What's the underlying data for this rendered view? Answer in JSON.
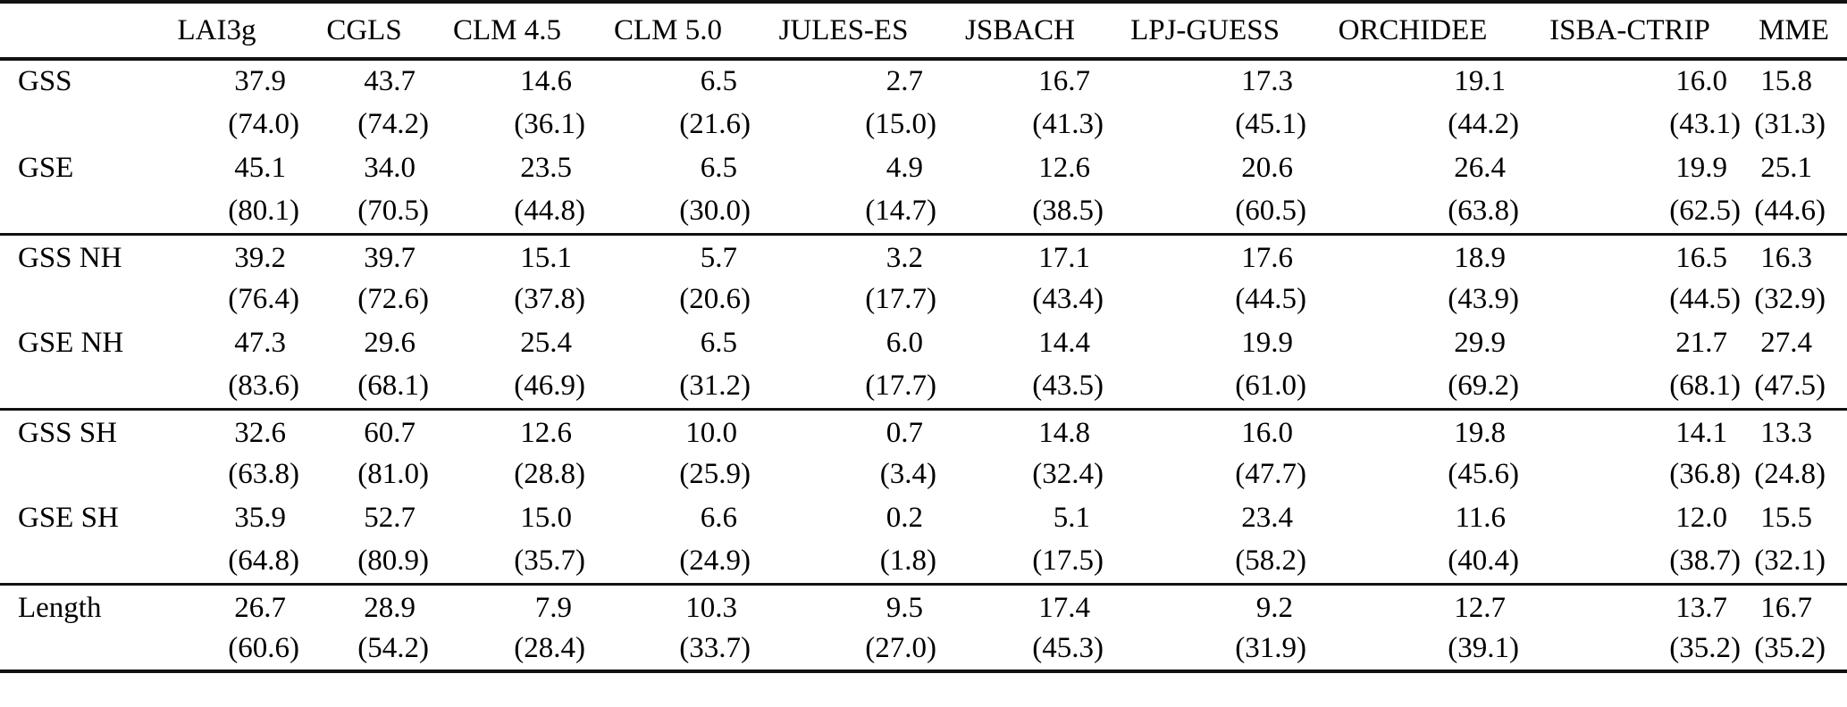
{
  "table": {
    "columns": [
      "",
      "LAI3g",
      "CGLS",
      "CLM 4.5",
      "CLM 5.0",
      "JULES-ES",
      "JSBACH",
      "LPJ-GUESS",
      "ORCHIDEE",
      "ISBA-CTRIP",
      "MME"
    ],
    "sections": [
      {
        "rows": [
          {
            "label": "GSS",
            "values": [
              "37.9",
              "43.7",
              "14.6",
              "6.5",
              "2.7",
              "16.7",
              "17.3",
              "19.1",
              "16.0",
              "15.8"
            ],
            "parens": [
              "(74.0)",
              "(74.2)",
              "(36.1)",
              "(21.6)",
              "(15.0)",
              "(41.3)",
              "(45.1)",
              "(44.2)",
              "(43.1)",
              "(31.3)"
            ]
          },
          {
            "label": "GSE",
            "values": [
              "45.1",
              "34.0",
              "23.5",
              "6.5",
              "4.9",
              "12.6",
              "20.6",
              "26.4",
              "19.9",
              "25.1"
            ],
            "parens": [
              "(80.1)",
              "(70.5)",
              "(44.8)",
              "(30.0)",
              "(14.7)",
              "(38.5)",
              "(60.5)",
              "(63.8)",
              "(62.5)",
              "(44.6)"
            ]
          }
        ]
      },
      {
        "rows": [
          {
            "label": "GSS NH",
            "values": [
              "39.2",
              "39.7",
              "15.1",
              "5.7",
              "3.2",
              "17.1",
              "17.6",
              "18.9",
              "16.5",
              "16.3"
            ],
            "parens": [
              "(76.4)",
              "(72.6)",
              "(37.8)",
              "(20.6)",
              "(17.7)",
              "(43.4)",
              "(44.5)",
              "(43.9)",
              "(44.5)",
              "(32.9)"
            ]
          },
          {
            "label": "GSE NH",
            "values": [
              "47.3",
              "29.6",
              "25.4",
              "6.5",
              "6.0",
              "14.4",
              "19.9",
              "29.9",
              "21.7",
              "27.4"
            ],
            "parens": [
              "(83.6)",
              "(68.1)",
              "(46.9)",
              "(31.2)",
              "(17.7)",
              "(43.5)",
              "(61.0)",
              "(69.2)",
              "(68.1)",
              "(47.5)"
            ]
          }
        ]
      },
      {
        "rows": [
          {
            "label": "GSS SH",
            "values": [
              "32.6",
              "60.7",
              "12.6",
              "10.0",
              "0.7",
              "14.8",
              "16.0",
              "19.8",
              "14.1",
              "13.3"
            ],
            "parens": [
              "(63.8)",
              "(81.0)",
              "(28.8)",
              "(25.9)",
              "(3.4)",
              "(32.4)",
              "(47.7)",
              "(45.6)",
              "(36.8)",
              "(24.8)"
            ]
          },
          {
            "label": "GSE SH",
            "values": [
              "35.9",
              "52.7",
              "15.0",
              "6.6",
              "0.2",
              "5.1",
              "23.4",
              "11.6",
              "12.0",
              "15.5"
            ],
            "parens": [
              "(64.8)",
              "(80.9)",
              "(35.7)",
              "(24.9)",
              "(1.8)",
              "(17.5)",
              "(58.2)",
              "(40.4)",
              "(38.7)",
              "(32.1)"
            ]
          }
        ]
      },
      {
        "rows": [
          {
            "label": "Length",
            "values": [
              "26.7",
              "28.9",
              "7.9",
              "10.3",
              "9.5",
              "17.4",
              "9.2",
              "12.7",
              "13.7",
              "16.7"
            ],
            "parens": [
              "(60.6)",
              "(54.2)",
              "(28.4)",
              "(33.7)",
              "(27.0)",
              "(45.3)",
              "(31.9)",
              "(39.1)",
              "(35.2)",
              "(35.2)"
            ]
          }
        ]
      }
    ]
  }
}
